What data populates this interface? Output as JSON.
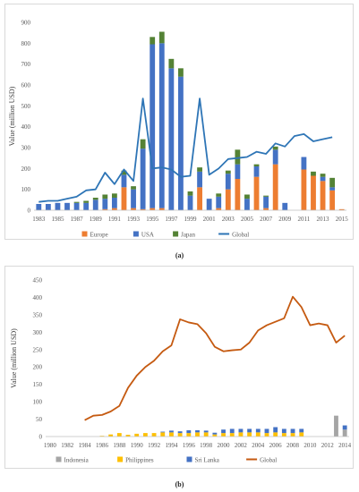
{
  "captions": {
    "a": "(a)",
    "b": "(b)"
  },
  "chart_data": [
    {
      "type": "bar",
      "stacked": true,
      "title": "",
      "ylabel": "Value (million USD)",
      "xlabel": "",
      "ylim": [
        0,
        900
      ],
      "yticks": [
        0,
        100,
        200,
        300,
        400,
        500,
        600,
        700,
        800,
        900
      ],
      "categories": [
        "1983",
        "1984",
        "1985",
        "1986",
        "1987",
        "1988",
        "1989",
        "1990",
        "1991",
        "1992",
        "1993",
        "1994",
        "1995",
        "1996",
        "1997",
        "1998",
        "1999",
        "2000",
        "2001",
        "2002",
        "2003",
        "2004",
        "2005",
        "2006",
        "2007",
        "2008",
        "2009",
        "2010",
        "2011",
        "2012",
        "2013",
        "2014",
        "2015"
      ],
      "xtick_labels": [
        "1983",
        "1985",
        "1987",
        "1989",
        "1991",
        "1993",
        "1995",
        "1997",
        "1999",
        "2001",
        "2003",
        "2005",
        "2007",
        "2009",
        "2011",
        "2013",
        "2015"
      ],
      "grid": false,
      "legend_position": "bottom",
      "series": [
        {
          "name": "Europe",
          "kind": "bar",
          "color": "#ed7d31",
          "values": [
            0,
            0,
            0,
            0,
            0,
            0,
            0,
            5,
            10,
            110,
            10,
            5,
            10,
            10,
            0,
            0,
            0,
            110,
            0,
            10,
            100,
            150,
            0,
            160,
            10,
            220,
            0,
            0,
            195,
            165,
            140,
            95,
            5
          ]
        },
        {
          "name": "USA",
          "kind": "bar",
          "color": "#4472c4",
          "values": [
            30,
            30,
            35,
            35,
            35,
            35,
            50,
            50,
            50,
            60,
            90,
            290,
            785,
            790,
            680,
            640,
            70,
            75,
            55,
            55,
            75,
            70,
            55,
            50,
            55,
            70,
            35,
            0,
            60,
            0,
            20,
            15,
            0
          ]
        },
        {
          "name": "Japan",
          "kind": "bar",
          "color": "#548235",
          "values": [
            0,
            0,
            0,
            0,
            5,
            10,
            10,
            20,
            20,
            20,
            15,
            45,
            35,
            55,
            45,
            40,
            20,
            20,
            0,
            15,
            15,
            70,
            20,
            10,
            5,
            15,
            0,
            0,
            0,
            20,
            15,
            45,
            0
          ]
        },
        {
          "name": "Global",
          "kind": "line",
          "color": "#2e75b6",
          "values": [
            40,
            45,
            45,
            55,
            65,
            95,
            100,
            180,
            125,
            195,
            140,
            535,
            200,
            205,
            195,
            160,
            165,
            535,
            170,
            200,
            245,
            250,
            255,
            280,
            270,
            320,
            305,
            355,
            365,
            330,
            340,
            350,
            null
          ]
        }
      ]
    },
    {
      "type": "bar",
      "stacked": true,
      "title": "",
      "ylabel": "Value (million USD)",
      "xlabel": "",
      "ylim": [
        0,
        450
      ],
      "yticks": [
        0,
        50,
        100,
        150,
        200,
        250,
        300,
        350,
        400,
        450
      ],
      "categories": [
        "1980",
        "1981",
        "1982",
        "1983",
        "1984",
        "1985",
        "1986",
        "1987",
        "1988",
        "1989",
        "1990",
        "1991",
        "1992",
        "1993",
        "1994",
        "1995",
        "1996",
        "1997",
        "1998",
        "1999",
        "2000",
        "2001",
        "2002",
        "2003",
        "2004",
        "2005",
        "2006",
        "2007",
        "2008",
        "2009",
        "2010",
        "2011",
        "2012",
        "2013",
        "2014"
      ],
      "xtick_labels": [
        "1980",
        "1982",
        "1984",
        "1986",
        "1988",
        "1990",
        "1992",
        "1994",
        "1996",
        "1998",
        "2000",
        "2002",
        "2004",
        "2006",
        "2008",
        "2010",
        "2012",
        "2014"
      ],
      "grid": false,
      "legend_position": "bottom",
      "series": [
        {
          "name": "Indonesia",
          "kind": "bar",
          "color": "#a5a5a5",
          "values": [
            0,
            0,
            0,
            0,
            0,
            0,
            0,
            0,
            0,
            0,
            0,
            0,
            0,
            0,
            0,
            0,
            0,
            0,
            0,
            0,
            0,
            0,
            0,
            0,
            0,
            0,
            0,
            0,
            0,
            0,
            0,
            0,
            0,
            60,
            20
          ]
        },
        {
          "name": "Philippines",
          "kind": "bar",
          "color": "#ffc000",
          "values": [
            0,
            0,
            0,
            0,
            0,
            0,
            2,
            6,
            10,
            5,
            8,
            10,
            10,
            12,
            12,
            10,
            10,
            12,
            12,
            6,
            10,
            10,
            12,
            12,
            12,
            10,
            12,
            10,
            10,
            12,
            0,
            0,
            0,
            0,
            0
          ]
        },
        {
          "name": "Sri Lanka",
          "kind": "bar",
          "color": "#4472c4",
          "values": [
            0,
            0,
            0,
            0,
            0,
            0,
            0,
            0,
            0,
            0,
            0,
            0,
            0,
            2,
            5,
            5,
            8,
            6,
            5,
            5,
            10,
            12,
            10,
            10,
            10,
            12,
            15,
            12,
            12,
            10,
            0,
            0,
            0,
            0,
            12
          ]
        },
        {
          "name": "Global",
          "kind": "line",
          "color": "#c55a11",
          "values": [
            null,
            null,
            null,
            null,
            47,
            60,
            62,
            72,
            88,
            140,
            175,
            200,
            218,
            245,
            262,
            337,
            328,
            323,
            297,
            258,
            245,
            248,
            250,
            270,
            305,
            320,
            330,
            340,
            402,
            372,
            320,
            325,
            320,
            270,
            290
          ]
        }
      ]
    }
  ]
}
